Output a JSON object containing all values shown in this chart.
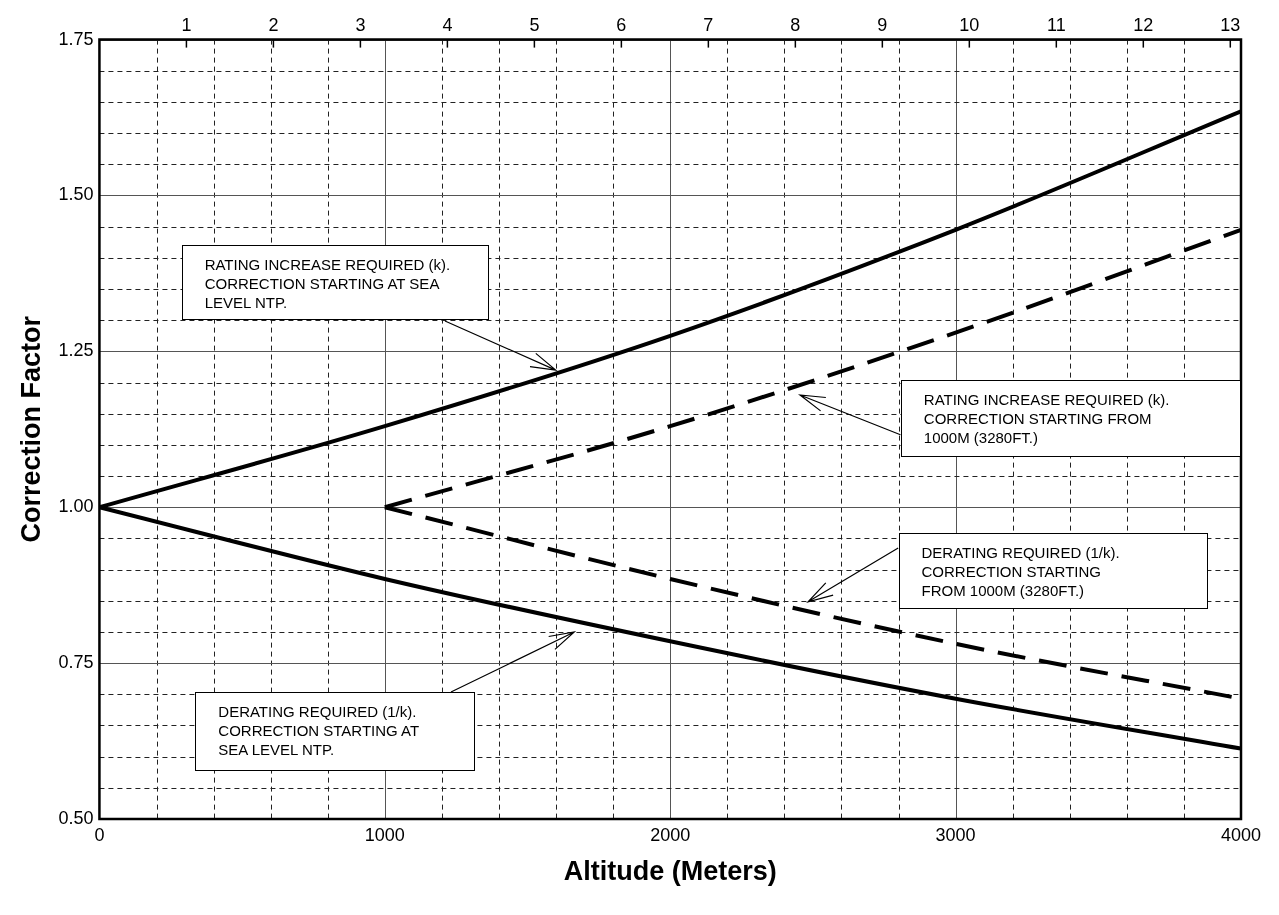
{
  "chart_data": {
    "type": "line",
    "xlabel": "Altitude (Meters)",
    "ylabel": "Correction Factor",
    "x": [
      0,
      1000,
      2000,
      3000,
      4000
    ],
    "series": [
      {
        "color": "#000000",
        "line_style": "solid",
        "values": [
          1,
          1.13,
          1.275,
          1.445,
          1.635
        ]
      },
      {
        "color": "#000000",
        "line_style": "solid",
        "values": [
          1,
          0.885,
          0.785,
          0.693,
          0.613
        ]
      },
      {
        "color": "#000000",
        "line_style": "dashed",
        "x": [
          1000,
          2000,
          3000,
          4000
        ],
        "values": [
          1,
          1.13,
          1.28,
          1.445
        ]
      },
      {
        "color": "#000000",
        "line_style": "dashed",
        "x": [
          1000,
          2000,
          3000,
          4000
        ],
        "values": [
          1,
          0.885,
          0.781,
          0.693
        ]
      }
    ],
    "xlim": [
      0,
      4000
    ],
    "xticks": [
      0,
      {
        "value": 200,
        "label": null
      },
      {
        "value": 400,
        "label": null
      },
      {
        "value": 600,
        "label": null
      },
      {
        "value": 800,
        "label": null
      },
      1000,
      {
        "value": 1200,
        "label": null
      },
      {
        "value": 1400,
        "label": null
      },
      {
        "value": 1600,
        "label": null
      },
      {
        "value": 1800,
        "label": null
      },
      2000,
      {
        "value": 2200,
        "label": null
      },
      {
        "value": 2400,
        "label": null
      },
      {
        "value": 2600,
        "label": null
      },
      {
        "value": 2800,
        "label": null
      },
      3000,
      {
        "value": 3200,
        "label": null
      },
      {
        "value": 3400,
        "label": null
      },
      {
        "value": 3600,
        "label": null
      },
      {
        "value": 3800,
        "label": null
      },
      4000
    ],
    "ylim": [
      0.5,
      1.75
    ],
    "yticks": [
      {
        "value": 0.5,
        "label": "0.50"
      },
      {
        "value": 0.55,
        "label": null
      },
      {
        "value": 0.6,
        "label": null
      },
      {
        "value": 0.65,
        "label": null
      },
      {
        "value": 0.7,
        "label": null
      },
      {
        "value": 0.75,
        "label": "0.75"
      },
      {
        "value": 0.8,
        "label": null
      },
      {
        "value": 0.85,
        "label": null
      },
      {
        "value": 0.9,
        "label": null
      },
      {
        "value": 0.95,
        "label": null
      },
      {
        "value": 1,
        "label": "1.00"
      },
      {
        "value": 1.05,
        "label": null
      },
      {
        "value": 1.1,
        "label": null
      },
      {
        "value": 1.15,
        "label": null
      },
      {
        "value": 1.2,
        "label": null
      },
      {
        "value": 1.25,
        "label": "1.25"
      },
      {
        "value": 1.3,
        "label": null
      },
      {
        "value": 1.35,
        "label": null
      },
      {
        "value": 1.4,
        "label": null
      },
      {
        "value": 1.45,
        "label": null
      },
      {
        "value": 1.5,
        "label": "1.50"
      },
      {
        "value": 1.55,
        "label": null
      },
      {
        "value": 1.6,
        "label": null
      },
      {
        "value": 1.65,
        "label": null
      },
      {
        "value": 1.7,
        "label": null
      },
      {
        "value": 1.75,
        "label": "1.75"
      }
    ],
    "x2lim": [
      0,
      13.123
    ],
    "x2ticks": [
      1,
      2,
      3,
      4,
      5,
      6,
      7,
      8,
      9,
      10,
      11,
      12,
      13
    ],
    "grid": true,
    "legend": false,
    "marker": "none",
    "annotations": [
      "RATING INCREASE REQUIRED (k). CORRECTION STARTING AT SEA LEVEL NTP.",
      "RATING INCREASE REQUIRED (k). CORRECTION STARTING FROM 1000M (3280FT.)",
      "DERATING REQUIRED (1/k). CORRECTION STARTING FROM 1000M (3280FT.)",
      "DERATING REQUIRED (1/k). CORRECTION STARTING AT SEA LEVEL NTP."
    ]
  }
}
